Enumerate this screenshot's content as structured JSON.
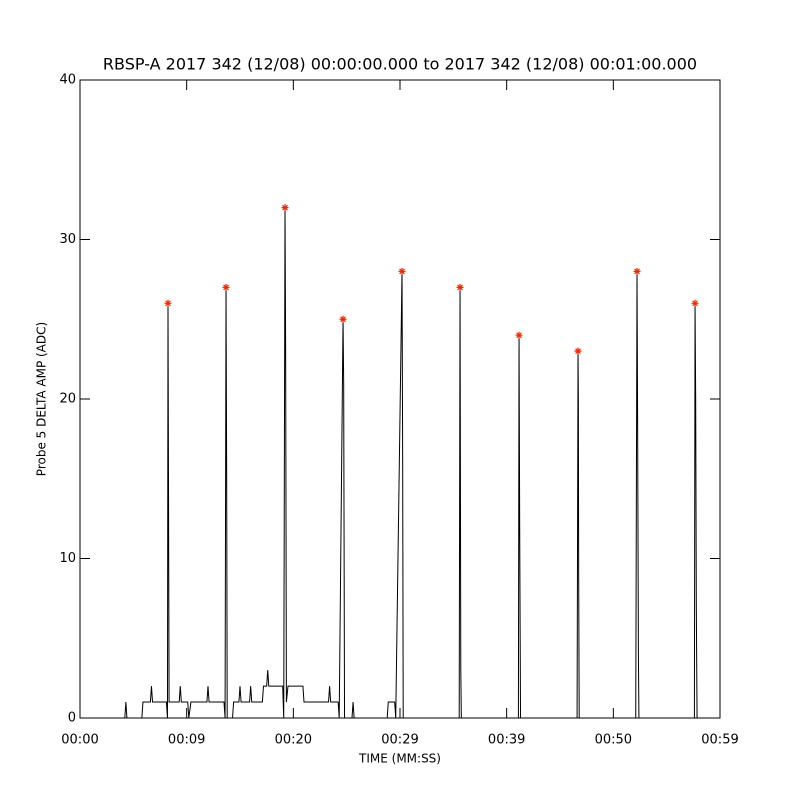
{
  "chart_data": {
    "type": "line",
    "title": "RBSP-A 2017 342 (12/08) 00:00:00.000 to 2017 342 (12/08) 00:01:00.000",
    "x_label": "TIME (MM:SS)",
    "y_label": "Probe 5 DELTA AMP (ADC)",
    "xlim": [
      0,
      60
    ],
    "xticks": [
      {
        "value": 0,
        "label": "00:00"
      },
      {
        "value": 10,
        "label": "00:09"
      },
      {
        "value": 20,
        "label": "00:20"
      },
      {
        "value": 30,
        "label": "00:29"
      },
      {
        "value": 40,
        "label": "00:39"
      },
      {
        "value": 50,
        "label": "00:50"
      },
      {
        "value": 60,
        "label": "00:59"
      }
    ],
    "ylim": [
      0,
      40
    ],
    "yticks": [
      0,
      10,
      20,
      30,
      40
    ],
    "series": [
      {
        "color": "#000000",
        "x": [
          0,
          4.2,
          4.3,
          4.4,
          5.8,
          5.9,
          6.6,
          6.7,
          6.8,
          8.1,
          8.2,
          8.25,
          8.3,
          8.35,
          9.3,
          9.4,
          9.5,
          10.1,
          10.2,
          10.4,
          11.9,
          12.0,
          12.1,
          13.5,
          13.6,
          13.69,
          13.75,
          13.8,
          14.3,
          14.4,
          14.9,
          15.0,
          15.1,
          15.9,
          16.0,
          16.1,
          17.1,
          17.2,
          17.5,
          17.6,
          17.7,
          19.0,
          19.1,
          19.22,
          19.28,
          19.35,
          19.5,
          20.9,
          21.0,
          23.3,
          23.4,
          23.5,
          24.2,
          24.3,
          24.66,
          24.72,
          24.8,
          25.5,
          25.6,
          25.7,
          28.8,
          28.9,
          29.5,
          29.6,
          30.19,
          30.25,
          30.3,
          35.55,
          35.63,
          35.7,
          35.75,
          41.1,
          41.16,
          41.22,
          41.3,
          46.6,
          46.69,
          46.72,
          46.75,
          46.8,
          52.1,
          52.22,
          52.28,
          52.35,
          52.4,
          57.6,
          57.66,
          57.72,
          57.78,
          57.85,
          60
        ],
        "values": [
          0,
          0,
          1,
          0,
          0,
          1,
          1,
          2,
          1,
          1,
          0,
          26,
          14,
          1,
          1,
          2,
          1,
          1,
          0,
          1,
          1,
          2,
          1,
          1,
          0,
          27,
          15,
          0,
          0,
          1,
          1,
          2,
          1,
          1,
          2,
          1,
          1,
          2,
          2,
          3,
          2,
          2,
          0,
          32,
          23,
          1,
          2,
          2,
          1,
          1,
          2,
          1,
          1,
          0,
          25,
          21,
          0,
          0,
          1,
          0,
          0,
          1,
          1,
          0,
          28,
          16,
          0,
          0,
          27,
          3,
          0,
          0,
          24,
          12,
          0,
          0,
          23,
          20,
          9,
          0,
          0,
          28,
          18,
          4,
          0,
          0,
          26,
          20,
          7,
          0,
          0
        ]
      },
      {
        "color": "#ff2200",
        "x": [
          8.25,
          13.69,
          19.22,
          24.66,
          30.19,
          35.63,
          41.16,
          46.69,
          52.22,
          57.66
        ],
        "values": [
          26,
          27,
          32,
          25,
          28,
          27,
          24,
          23,
          28,
          26
        ]
      }
    ]
  }
}
